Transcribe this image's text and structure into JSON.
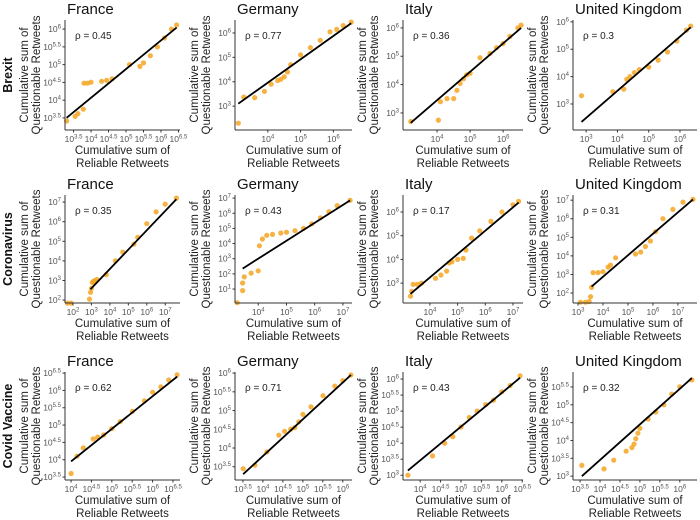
{
  "labels": {
    "y_line1": "Cumulative sum of",
    "y_line2": "Questionable Retweets",
    "x_line1": "Cumulative sum of",
    "x_line2": "Reliable Retweets",
    "tick_base": "10",
    "rho_prefix": "ρ = "
  },
  "colors": {
    "points": "#F5A623",
    "fit_line": "#000000",
    "axis": "#333333"
  },
  "rows": [
    "Brexit",
    "Coronavirus",
    "Covid Vaccine"
  ],
  "chart_data": [
    {
      "type": "scatter",
      "row": "Brexit",
      "title": "France",
      "rho": "0.45",
      "xscale": "log",
      "yscale": "log",
      "xlim": [
        1800,
        3500000.0
      ],
      "ylim": [
        1450,
        1800000.0
      ],
      "xticks": [
        "3.5",
        "4",
        "4.5",
        "5",
        "5.5",
        "6",
        "6.5"
      ],
      "yticks": [
        "3.5",
        "4",
        "4.5",
        "5",
        "5.5",
        "6"
      ],
      "points": [
        [
          2000,
          2600
        ],
        [
          3500,
          3500
        ],
        [
          4200,
          4200
        ],
        [
          6000,
          5600
        ],
        [
          6300,
          30000
        ],
        [
          7900,
          30000
        ],
        [
          10000,
          32000
        ],
        [
          20000,
          34000
        ],
        [
          28000,
          36000
        ],
        [
          40000,
          40000
        ],
        [
          126000,
          100000
        ],
        [
          250000,
          89000
        ],
        [
          316000,
          112000
        ],
        [
          500000,
          178000
        ],
        [
          790000,
          316000
        ],
        [
          1260000.0,
          560000
        ],
        [
          2000000.0,
          1000000.0
        ],
        [
          2800000.0,
          1300000.0
        ]
      ],
      "fit": [
        [
          2000,
          3200
        ],
        [
          2800000.0,
          1100000.0
        ]
      ]
    },
    {
      "type": "scatter",
      "row": "Brexit",
      "title": "Germany",
      "rho": "0.77",
      "xscale": "log",
      "yscale": "log",
      "xlim": [
        1000,
        3700000.0
      ],
      "ylim": [
        105,
        3400000.0
      ],
      "xticks": [
        "4",
        "5",
        "6"
      ],
      "yticks": [
        "3",
        "4",
        "5",
        "6"
      ],
      "points": [
        [
          1260,
          200
        ],
        [
          1860,
          2340
        ],
        [
          4000,
          2240
        ],
        [
          7900,
          4000
        ],
        [
          12600,
          7900
        ],
        [
          20000,
          11200
        ],
        [
          25000,
          12600
        ],
        [
          31600,
          15800
        ],
        [
          40000,
          25000
        ],
        [
          50000,
          50000
        ],
        [
          100000.0,
          126000
        ],
        [
          200000.0,
          250000
        ],
        [
          400000.0,
          500000.0
        ],
        [
          790000.0,
          1120000.0
        ],
        [
          1260000.0,
          1400000.0
        ],
        [
          2000000.0,
          2000000.0
        ],
        [
          3500000.0,
          2800000.0
        ]
      ],
      "fit": [
        [
          1260,
          1260
        ],
        [
          3500000.0,
          2500000.0
        ]
      ]
    },
    {
      "type": "scatter",
      "row": "Brexit",
      "title": "Italy",
      "rho": "0.36",
      "xscale": "log",
      "yscale": "log",
      "xlim": [
        930,
        4000000.0
      ],
      "ylim": [
        250,
        1900000.0
      ],
      "xticks": [
        "4",
        "5",
        "6"
      ],
      "yticks": [
        "3",
        "4",
        "5",
        "6"
      ],
      "points": [
        [
          1600,
          500
        ],
        [
          11000,
          560
        ],
        [
          12600,
          2500
        ],
        [
          20000,
          3200
        ],
        [
          32000,
          3200
        ],
        [
          40000,
          6300
        ],
        [
          50000,
          11000
        ],
        [
          63000,
          16000
        ],
        [
          79000,
          22000
        ],
        [
          100000.0,
          25000
        ],
        [
          200000.0,
          89000
        ],
        [
          400000.0,
          126000
        ],
        [
          630000.0,
          200000.0
        ],
        [
          1000000.0,
          280000.0
        ],
        [
          1600000.0,
          500000.0
        ],
        [
          2800000.0,
          1000000.0
        ],
        [
          3500000.0,
          1260000.0
        ]
      ],
      "fit": [
        [
          1600,
          450
        ],
        [
          3500000.0,
          1000000.0
        ]
      ]
    },
    {
      "type": "scatter",
      "row": "Brexit",
      "title": "United Kingdom",
      "rho": "0.3",
      "xscale": "log",
      "yscale": "log",
      "xlim": [
        380,
        3500000.0
      ],
      "ylim": [
        112,
        1170000.0
      ],
      "xticks": [
        "3",
        "4",
        "5",
        "6"
      ],
      "yticks": [
        "3",
        "4",
        "5",
        "6"
      ],
      "points": [
        [
          710,
          2000
        ],
        [
          7100,
          2800
        ],
        [
          16000,
          3500
        ],
        [
          20000,
          7900
        ],
        [
          25000,
          10000
        ],
        [
          35000,
          14000
        ],
        [
          50000,
          18000
        ],
        [
          100000.0,
          22000
        ],
        [
          200000.0,
          40000
        ],
        [
          400000.0,
          79000
        ],
        [
          790000.0,
          200000.0
        ],
        [
          1600000.0,
          500000.0
        ],
        [
          2200000.0,
          700000.0
        ]
      ],
      "fit": [
        [
          710,
          220
        ],
        [
          2200000.0,
          630000.0
        ]
      ]
    },
    {
      "type": "scatter",
      "row": "Coronavirus",
      "title": "France",
      "rho": "0.35",
      "xscale": "log",
      "yscale": "log",
      "xlim": [
        37,
        63000000.0
      ],
      "ylim": [
        71,
        23000000.0
      ],
      "xticks": [
        "2",
        "3",
        "4",
        "5",
        "6",
        "7"
      ],
      "yticks": [
        "2",
        "3",
        "4",
        "5",
        "6",
        "7"
      ],
      "points": [
        [
          50,
          70
        ],
        [
          79,
          70
        ],
        [
          790,
          112
        ],
        [
          890,
          250
        ],
        [
          1000,
          400
        ],
        [
          1120,
          790
        ],
        [
          1260,
          890
        ],
        [
          1580,
          1000
        ],
        [
          2000,
          1120
        ],
        [
          6300,
          2000
        ],
        [
          20000,
          10000
        ],
        [
          50000,
          28000
        ],
        [
          200000.0,
          71000
        ],
        [
          320000.0,
          160000.0
        ],
        [
          1000000.0,
          790000.0
        ],
        [
          3200000.0,
          3200000.0
        ],
        [
          10000000.0,
          7900000.0
        ],
        [
          40000000.0,
          16000000.0
        ]
      ],
      "fit": [
        [
          890,
          355
        ],
        [
          40000000.0,
          14000000.0
        ]
      ]
    },
    {
      "type": "scatter",
      "row": "Coronavirus",
      "title": "Germany",
      "rho": "0.43",
      "xscale": "log",
      "yscale": "log",
      "xlim": [
        1500,
        21000000.0
      ],
      "ylim": [
        1.2,
        16000000.0
      ],
      "xticks": [
        "4",
        "5",
        "6",
        "7"
      ],
      "yticks": [
        "1",
        "2",
        "3",
        "4",
        "5",
        "6",
        "7"
      ],
      "points": [
        [
          1800,
          1.26
        ],
        [
          2800,
          7.9
        ],
        [
          2800,
          25
        ],
        [
          3200,
          63
        ],
        [
          5600,
          112
        ],
        [
          10000,
          160
        ],
        [
          11000,
          7100
        ],
        [
          14000,
          20000
        ],
        [
          20000,
          35000
        ],
        [
          32000,
          40000
        ],
        [
          63000,
          50000
        ],
        [
          100000.0,
          56000
        ],
        [
          200000.0,
          71000
        ],
        [
          400000.0,
          100000.0
        ],
        [
          790000.0,
          200000.0
        ],
        [
          1600000.0,
          500000.0
        ],
        [
          3200000.0,
          1260000.0
        ],
        [
          6300000.0,
          3200000.0
        ],
        [
          18000000.0,
          7100000.0
        ]
      ],
      "fit": [
        [
          2800,
          224
        ],
        [
          18000000.0,
          7100000.0
        ]
      ]
    },
    {
      "type": "scatter",
      "row": "Coronavirus",
      "title": "Italy",
      "rho": "0.17",
      "xscale": "log",
      "yscale": "log",
      "xlim": [
        1070,
        23000000.0
      ],
      "ylim": [
        145,
        5200000.0
      ],
      "xticks": [
        "4",
        "5",
        "6",
        "7"
      ],
      "yticks": [
        "3",
        "4",
        "5",
        "6"
      ],
      "points": [
        [
          2000,
          280
        ],
        [
          2200,
          450
        ],
        [
          2500,
          890
        ],
        [
          3500,
          890
        ],
        [
          5000,
          1000
        ],
        [
          16000,
          1600
        ],
        [
          25000,
          2200
        ],
        [
          40000,
          3200
        ],
        [
          50000,
          7100
        ],
        [
          63000,
          7900
        ],
        [
          100000.0,
          10000
        ],
        [
          160000.0,
          11000
        ],
        [
          200000.0,
          25000
        ],
        [
          320000.0,
          79000
        ],
        [
          630000.0,
          160000.0
        ],
        [
          1600000.0,
          400000.0
        ],
        [
          4000000.0,
          1000000.0
        ],
        [
          10000000.0,
          2000000.0
        ],
        [
          16000000.0,
          2800000.0
        ]
      ],
      "fit": [
        [
          2000,
          355
        ],
        [
          16000000.0,
          2500000.0
        ]
      ]
    },
    {
      "type": "scatter",
      "row": "Coronavirus",
      "title": "United Kingdom",
      "rho": "0.31",
      "xscale": "log",
      "yscale": "log",
      "xlim": [
        630,
        58000000.0
      ],
      "ylim": [
        29,
        19000000.0
      ],
      "xticks": [
        "3",
        "4",
        "5",
        "6",
        "7"
      ],
      "yticks": [
        "2",
        "3",
        "4",
        "5",
        "6",
        "7"
      ],
      "points": [
        [
          1260,
          32
        ],
        [
          2000,
          32
        ],
        [
          2800,
          35
        ],
        [
          3200,
          63
        ],
        [
          3500,
          200
        ],
        [
          4000,
          1260
        ],
        [
          6300,
          1260
        ],
        [
          10000,
          1400
        ],
        [
          16000,
          2500
        ],
        [
          20000,
          3200
        ],
        [
          32000,
          7900
        ],
        [
          200000.0,
          12600
        ],
        [
          320000.0,
          16000
        ],
        [
          500000.0,
          32000
        ],
        [
          790000.0,
          63000
        ],
        [
          1260000.0,
          200000.0
        ],
        [
          2500000.0,
          1000000.0
        ],
        [
          6300000.0,
          3200000.0
        ],
        [
          16000000.0,
          7900000.0
        ],
        [
          40000000.0,
          11000000.0
        ]
      ],
      "fit": [
        [
          3500,
          224
        ],
        [
          40000000.0,
          11000000.0
        ]
      ]
    },
    {
      "type": "scatter",
      "row": "Covid Vaccine",
      "title": "France",
      "rho": "0.62",
      "xscale": "log",
      "yscale": "log",
      "xlim": [
        7100,
        4700000.0
      ],
      "ylim": [
        2600,
        3400000.0
      ],
      "xticks": [
        "4",
        "4.5",
        "5",
        "5.5",
        "6",
        "6.5"
      ],
      "yticks": [
        "3.5",
        "4",
        "4.5",
        "5",
        "5.5",
        "6",
        "6.5"
      ],
      "points": [
        [
          10000,
          4000
        ],
        [
          14000,
          12600
        ],
        [
          20000,
          22000
        ],
        [
          35000,
          40000
        ],
        [
          45000,
          45000
        ],
        [
          63000,
          52000
        ],
        [
          100000.0,
          79000
        ],
        [
          160000.0,
          126000.0
        ],
        [
          320000.0,
          250000.0
        ],
        [
          630000.0,
          500000.0
        ],
        [
          1000000.0,
          890000.0
        ],
        [
          1600000.0,
          1260000.0
        ],
        [
          2500000.0,
          2000000.0
        ],
        [
          4000000.0,
          2800000.0
        ]
      ],
      "fit": [
        [
          10000,
          8900
        ],
        [
          4000000.0,
          2500000.0
        ]
      ]
    },
    {
      "type": "scatter",
      "row": "Covid Vaccine",
      "title": "Germany",
      "rho": "0.71",
      "xscale": "log",
      "yscale": "log",
      "xlim": [
        2000,
        1700000.0
      ],
      "ylim": [
        1400,
        1070000.0
      ],
      "xticks": [
        "3.5",
        "4",
        "4.5",
        "5",
        "5.5",
        "6"
      ],
      "yticks": [
        "3.5",
        "4",
        "4.5",
        "5",
        "5.5",
        "6"
      ],
      "points": [
        [
          3200,
          2800
        ],
        [
          6300,
          3500
        ],
        [
          12600,
          7900
        ],
        [
          25000,
          22000
        ],
        [
          35000,
          28000
        ],
        [
          50000,
          32000
        ],
        [
          63000,
          35000
        ],
        [
          79000,
          50000
        ],
        [
          100000.0,
          79000
        ],
        [
          160000.0,
          126000.0
        ],
        [
          320000.0,
          250000.0
        ],
        [
          630000.0,
          450000.0
        ],
        [
          1000000.0,
          630000.0
        ],
        [
          1600000.0,
          890000.0
        ]
      ],
      "fit": [
        [
          3200,
          2000
        ],
        [
          1600000.0,
          890000.0
        ]
      ]
    },
    {
      "type": "scatter",
      "row": "Covid Vaccine",
      "title": "Italy",
      "rho": "0.43",
      "xscale": "log",
      "yscale": "log",
      "xlim": [
        3800,
        3300000.0
      ],
      "ylim": [
        710,
        1660000.0
      ],
      "xticks": [
        "4",
        "4.5",
        "5",
        "5.5",
        "6",
        "6.5"
      ],
      "yticks": [
        "3",
        "3.5",
        "4",
        "4.5",
        "5",
        "5.5",
        "6"
      ],
      "points": [
        [
          5000,
          1000
        ],
        [
          20000,
          4000
        ],
        [
          40000,
          10000
        ],
        [
          63000,
          16000
        ],
        [
          100000.0,
          32000
        ],
        [
          160000.0,
          63000
        ],
        [
          250000.0,
          100000.0
        ],
        [
          400000.0,
          160000.0
        ],
        [
          630000.0,
          220000.0
        ],
        [
          1000000.0,
          400000.0
        ],
        [
          1600000.0,
          630000.0
        ],
        [
          2800000.0,
          1260000.0
        ]
      ],
      "fit": [
        [
          5000,
          1400
        ],
        [
          2800000.0,
          1100000.0
        ]
      ]
    },
    {
      "type": "scatter",
      "row": "Covid Vaccine",
      "title": "United Kingdom",
      "rho": "0.32",
      "xscale": "log",
      "yscale": "log",
      "xlim": [
        2100,
        2700000.0
      ],
      "ylim": [
        780,
        830000.0
      ],
      "xticks": [
        "3.5",
        "4",
        "4.5",
        "5",
        "5.5",
        "6"
      ],
      "yticks": [
        "3",
        "3.5",
        "4",
        "4.5",
        "5",
        "5.5"
      ],
      "points": [
        [
          3500,
          2000
        ],
        [
          12600,
          1600
        ],
        [
          22000,
          2800
        ],
        [
          45000,
          5000
        ],
        [
          63000,
          6300
        ],
        [
          71000,
          7900
        ],
        [
          79000,
          11200
        ],
        [
          89000,
          16000
        ],
        [
          100000.0,
          22000
        ],
        [
          160000.0,
          40000
        ],
        [
          250000.0,
          63000
        ],
        [
          400000.0,
          100000.0
        ],
        [
          630000.0,
          200000.0
        ],
        [
          1000000.0,
          320000.0
        ],
        [
          2000000.0,
          500000.0
        ]
      ],
      "fit": [
        [
          3500,
          1000
        ],
        [
          2000000.0,
          560000.0
        ]
      ]
    }
  ]
}
